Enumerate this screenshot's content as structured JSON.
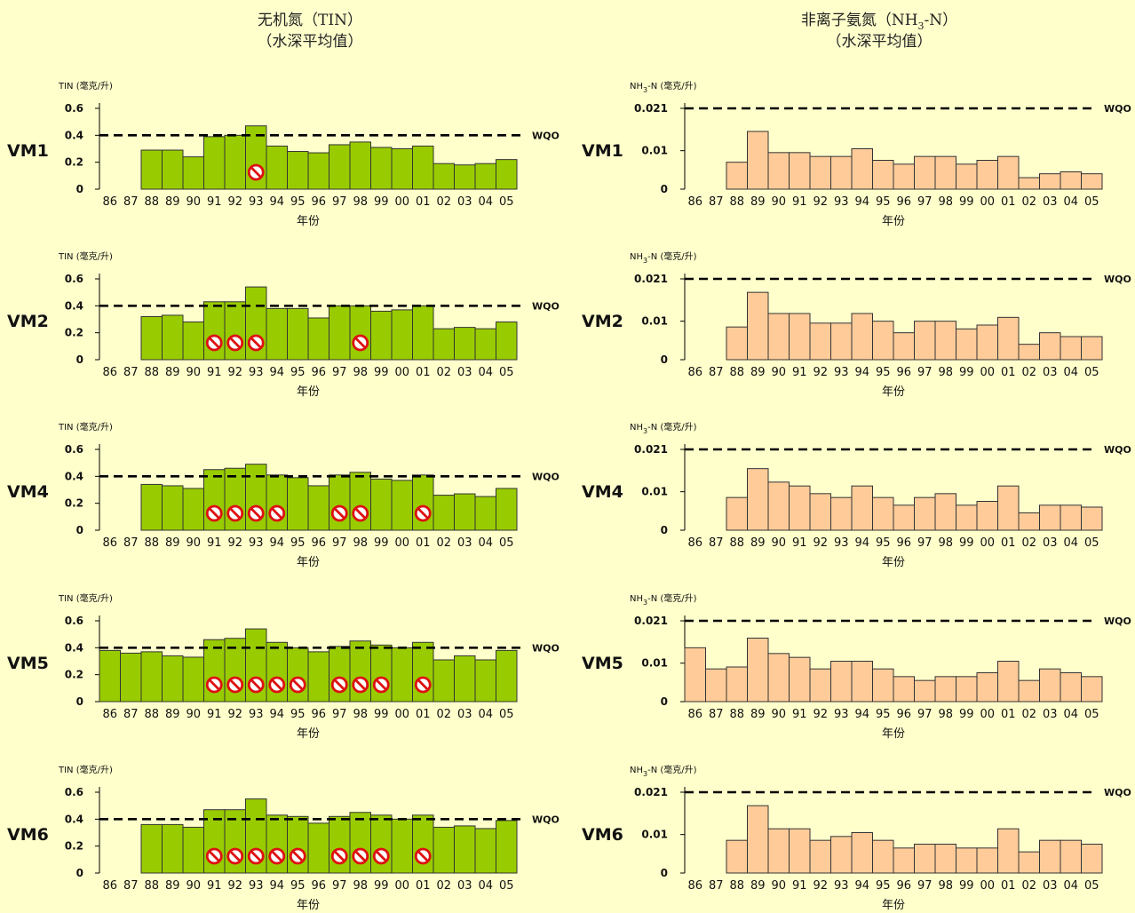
{
  "columns": [
    {
      "title_line1": "无机氮（TIN）",
      "title_line2": "（水深平均值）"
    },
    {
      "title_line1": "非离子氨氮（NH",
      "title_sub": "3",
      "title_line1_end": "-N）",
      "title_line2": "（水深平均值）"
    }
  ],
  "years": [
    "86",
    "87",
    "88",
    "89",
    "90",
    "91",
    "92",
    "93",
    "94",
    "95",
    "96",
    "97",
    "98",
    "99",
    "00",
    "01",
    "02",
    "03",
    "04",
    "05"
  ],
  "xlabel": "年份",
  "wqo_label": "WQO",
  "tin_axis": {
    "ylabel": "TIN (毫克/升)",
    "ticks": [
      "0.6",
      "0.4",
      "0.2",
      "0"
    ],
    "ylim": [
      0,
      0.6
    ],
    "wqo": 0.4,
    "bar_color": "#99cc00"
  },
  "nh3_axis": {
    "ylabel_main": "NH",
    "ylabel_sub": "3",
    "ylabel_end": "-N (毫克/升)",
    "ticks": [
      "0.021",
      "0.01",
      "0"
    ],
    "ylim": [
      0,
      0.021
    ],
    "tick_values": [
      0.021,
      0.01,
      0
    ],
    "wqo": 0.021,
    "bar_color": "#ffcc99"
  },
  "noncompliance_icon": "no-entry-icon",
  "chart_data": [
    {
      "type": "bar",
      "station": "VM1",
      "measure": "TIN",
      "values": [
        null,
        null,
        0.29,
        0.29,
        0.24,
        0.39,
        0.4,
        0.47,
        0.32,
        0.28,
        0.27,
        0.33,
        0.35,
        0.31,
        0.3,
        0.32,
        0.19,
        0.18,
        0.19,
        0.22
      ],
      "exceedances": [
        "93"
      ]
    },
    {
      "type": "bar",
      "station": "VM1",
      "measure": "NH3-N",
      "values": [
        null,
        null,
        0.007,
        0.015,
        0.0095,
        0.0095,
        0.0085,
        0.0085,
        0.0105,
        0.0075,
        0.0065,
        0.0085,
        0.0085,
        0.0065,
        0.0075,
        0.0085,
        0.003,
        0.004,
        0.0045,
        0.004
      ]
    },
    {
      "type": "bar",
      "station": "VM2",
      "measure": "TIN",
      "values": [
        null,
        null,
        0.32,
        0.33,
        0.28,
        0.43,
        0.43,
        0.54,
        0.38,
        0.38,
        0.31,
        0.4,
        0.4,
        0.36,
        0.37,
        0.4,
        0.23,
        0.24,
        0.23,
        0.28
      ],
      "exceedances": [
        "91",
        "92",
        "93",
        "98"
      ]
    },
    {
      "type": "bar",
      "station": "VM2",
      "measure": "NH3-N",
      "values": [
        null,
        null,
        0.0085,
        0.0175,
        0.012,
        0.012,
        0.0095,
        0.0095,
        0.012,
        0.01,
        0.007,
        0.01,
        0.01,
        0.008,
        0.009,
        0.011,
        0.004,
        0.007,
        0.006,
        0.006
      ]
    },
    {
      "type": "bar",
      "station": "VM4",
      "measure": "TIN",
      "values": [
        null,
        null,
        0.34,
        0.33,
        0.31,
        0.45,
        0.46,
        0.49,
        0.41,
        0.39,
        0.33,
        0.41,
        0.43,
        0.38,
        0.37,
        0.41,
        0.26,
        0.27,
        0.25,
        0.31
      ],
      "exceedances": [
        "91",
        "92",
        "93",
        "94",
        "97",
        "98",
        "01"
      ]
    },
    {
      "type": "bar",
      "station": "VM4",
      "measure": "NH3-N",
      "values": [
        null,
        null,
        0.0085,
        0.016,
        0.0125,
        0.0115,
        0.0095,
        0.0085,
        0.0115,
        0.0085,
        0.0065,
        0.0085,
        0.0095,
        0.0065,
        0.0075,
        0.0115,
        0.0045,
        0.0065,
        0.0065,
        0.006
      ]
    },
    {
      "type": "bar",
      "station": "VM5",
      "measure": "TIN",
      "values": [
        0.38,
        0.36,
        0.37,
        0.34,
        0.33,
        0.46,
        0.47,
        0.54,
        0.44,
        0.4,
        0.37,
        0.41,
        0.45,
        0.42,
        0.4,
        0.44,
        0.31,
        0.34,
        0.31,
        0.38
      ],
      "exceedances": [
        "91",
        "92",
        "93",
        "94",
        "95",
        "97",
        "98",
        "99",
        "01"
      ]
    },
    {
      "type": "bar",
      "station": "VM5",
      "measure": "NH3-N",
      "values": [
        0.014,
        0.0085,
        0.009,
        0.0165,
        0.0125,
        0.0115,
        0.0085,
        0.0105,
        0.0105,
        0.0085,
        0.0065,
        0.0055,
        0.0065,
        0.0065,
        0.0075,
        0.0105,
        0.0055,
        0.0085,
        0.0075,
        0.0065
      ]
    },
    {
      "type": "bar",
      "station": "VM6",
      "measure": "TIN",
      "values": [
        null,
        null,
        0.36,
        0.36,
        0.34,
        0.47,
        0.47,
        0.55,
        0.43,
        0.42,
        0.37,
        0.42,
        0.45,
        0.43,
        0.4,
        0.43,
        0.34,
        0.35,
        0.33,
        0.39
      ],
      "exceedances": [
        "91",
        "92",
        "93",
        "94",
        "95",
        "97",
        "98",
        "99",
        "01"
      ]
    },
    {
      "type": "bar",
      "station": "VM6",
      "measure": "NH3-N",
      "values": [
        null,
        null,
        0.0085,
        0.0175,
        0.0115,
        0.0115,
        0.0085,
        0.0095,
        0.0105,
        0.0085,
        0.0065,
        0.0075,
        0.0075,
        0.0065,
        0.0065,
        0.0115,
        0.0055,
        0.0085,
        0.0085,
        0.0075
      ]
    }
  ]
}
